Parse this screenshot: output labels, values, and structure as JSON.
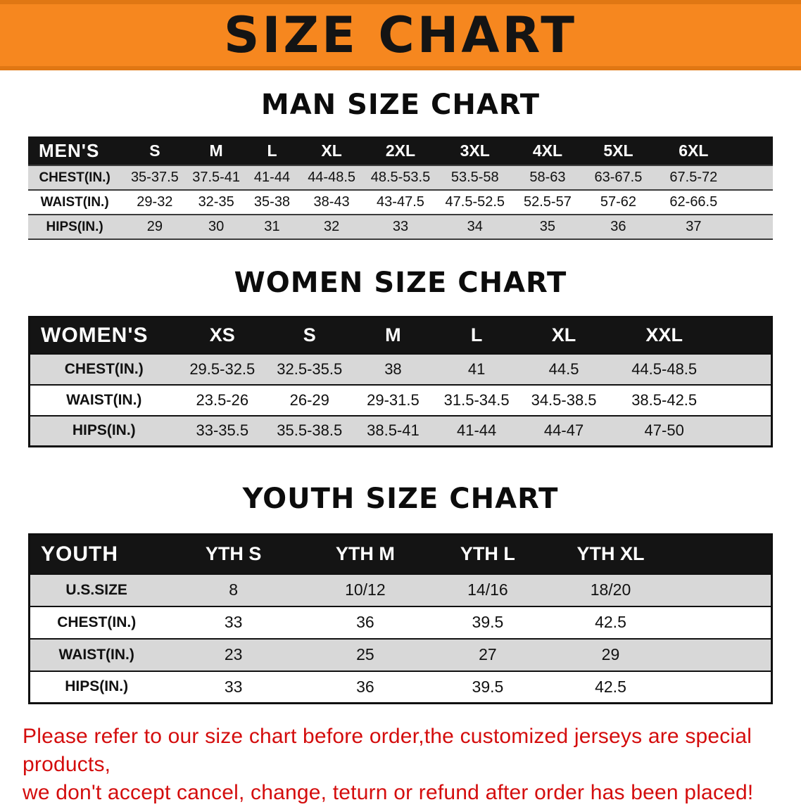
{
  "colors": {
    "banner_bg": "#f6871f",
    "banner_edge": "#e07713",
    "banner_text": "#141414",
    "table_header_bg": "#141414",
    "table_header_text": "#ffffff",
    "row_shaded": "#d8d8d8",
    "row_plain": "#ffffff",
    "disclaimer_text": "#d40d0d"
  },
  "banner": {
    "title": "SIZE CHART"
  },
  "sections": [
    {
      "id": "men",
      "heading": "MAN SIZE CHART",
      "table": {
        "title": "MEN'S",
        "columns": [
          "S",
          "M",
          "L",
          "XL",
          "2XL",
          "3XL",
          "4XL",
          "5XL",
          "6XL"
        ],
        "rows": [
          {
            "label": "CHEST(IN.)",
            "values": [
              "35-37.5",
              "37.5-41",
              "41-44",
              "44-48.5",
              "48.5-53.5",
              "53.5-58",
              "58-63",
              "63-67.5",
              "67.5-72"
            ]
          },
          {
            "label": "WAIST(IN.)",
            "values": [
              "29-32",
              "32-35",
              "35-38",
              "38-43",
              "43-47.5",
              "47.5-52.5",
              "52.5-57",
              "57-62",
              "62-66.5"
            ]
          },
          {
            "label": "HIPS(IN.)",
            "values": [
              "29",
              "30",
              "31",
              "32",
              "33",
              "34",
              "35",
              "36",
              "37"
            ]
          }
        ]
      }
    },
    {
      "id": "women",
      "heading": "WOMEN SIZE CHART",
      "table": {
        "title": "WOMEN'S",
        "columns": [
          "XS",
          "S",
          "M",
          "L",
          "XL",
          "XXL"
        ],
        "rows": [
          {
            "label": "CHEST(IN.)",
            "values": [
              "29.5-32.5",
              "32.5-35.5",
              "38",
              "41",
              "44.5",
              "44.5-48.5"
            ]
          },
          {
            "label": "WAIST(IN.)",
            "values": [
              "23.5-26",
              "26-29",
              "29-31.5",
              "31.5-34.5",
              "34.5-38.5",
              "38.5-42.5"
            ]
          },
          {
            "label": "HIPS(IN.)",
            "values": [
              "33-35.5",
              "35.5-38.5",
              "38.5-41",
              "41-44",
              "44-47",
              "47-50"
            ]
          }
        ]
      }
    },
    {
      "id": "youth",
      "heading": "YOUTH SIZE CHART",
      "table": {
        "title": "YOUTH",
        "columns": [
          "YTH S",
          "YTH M",
          "YTH L",
          "YTH XL"
        ],
        "rows": [
          {
            "label": "U.S.SIZE",
            "values": [
              "8",
              "10/12",
              "14/16",
              "18/20"
            ]
          },
          {
            "label": "CHEST(IN.)",
            "values": [
              "33",
              "36",
              "39.5",
              "42.5"
            ]
          },
          {
            "label": "WAIST(IN.)",
            "values": [
              "23",
              "25",
              "27",
              "29"
            ]
          },
          {
            "label": "HIPS(IN.)",
            "values": [
              "33",
              "36",
              "39.5",
              "42.5"
            ]
          }
        ]
      }
    }
  ],
  "disclaimer": {
    "lines": [
      "Please refer to our size chart before order,the customized jerseys are special products,",
      "we don't accept cancel, change, teturn or refund after order has been placed!"
    ]
  }
}
